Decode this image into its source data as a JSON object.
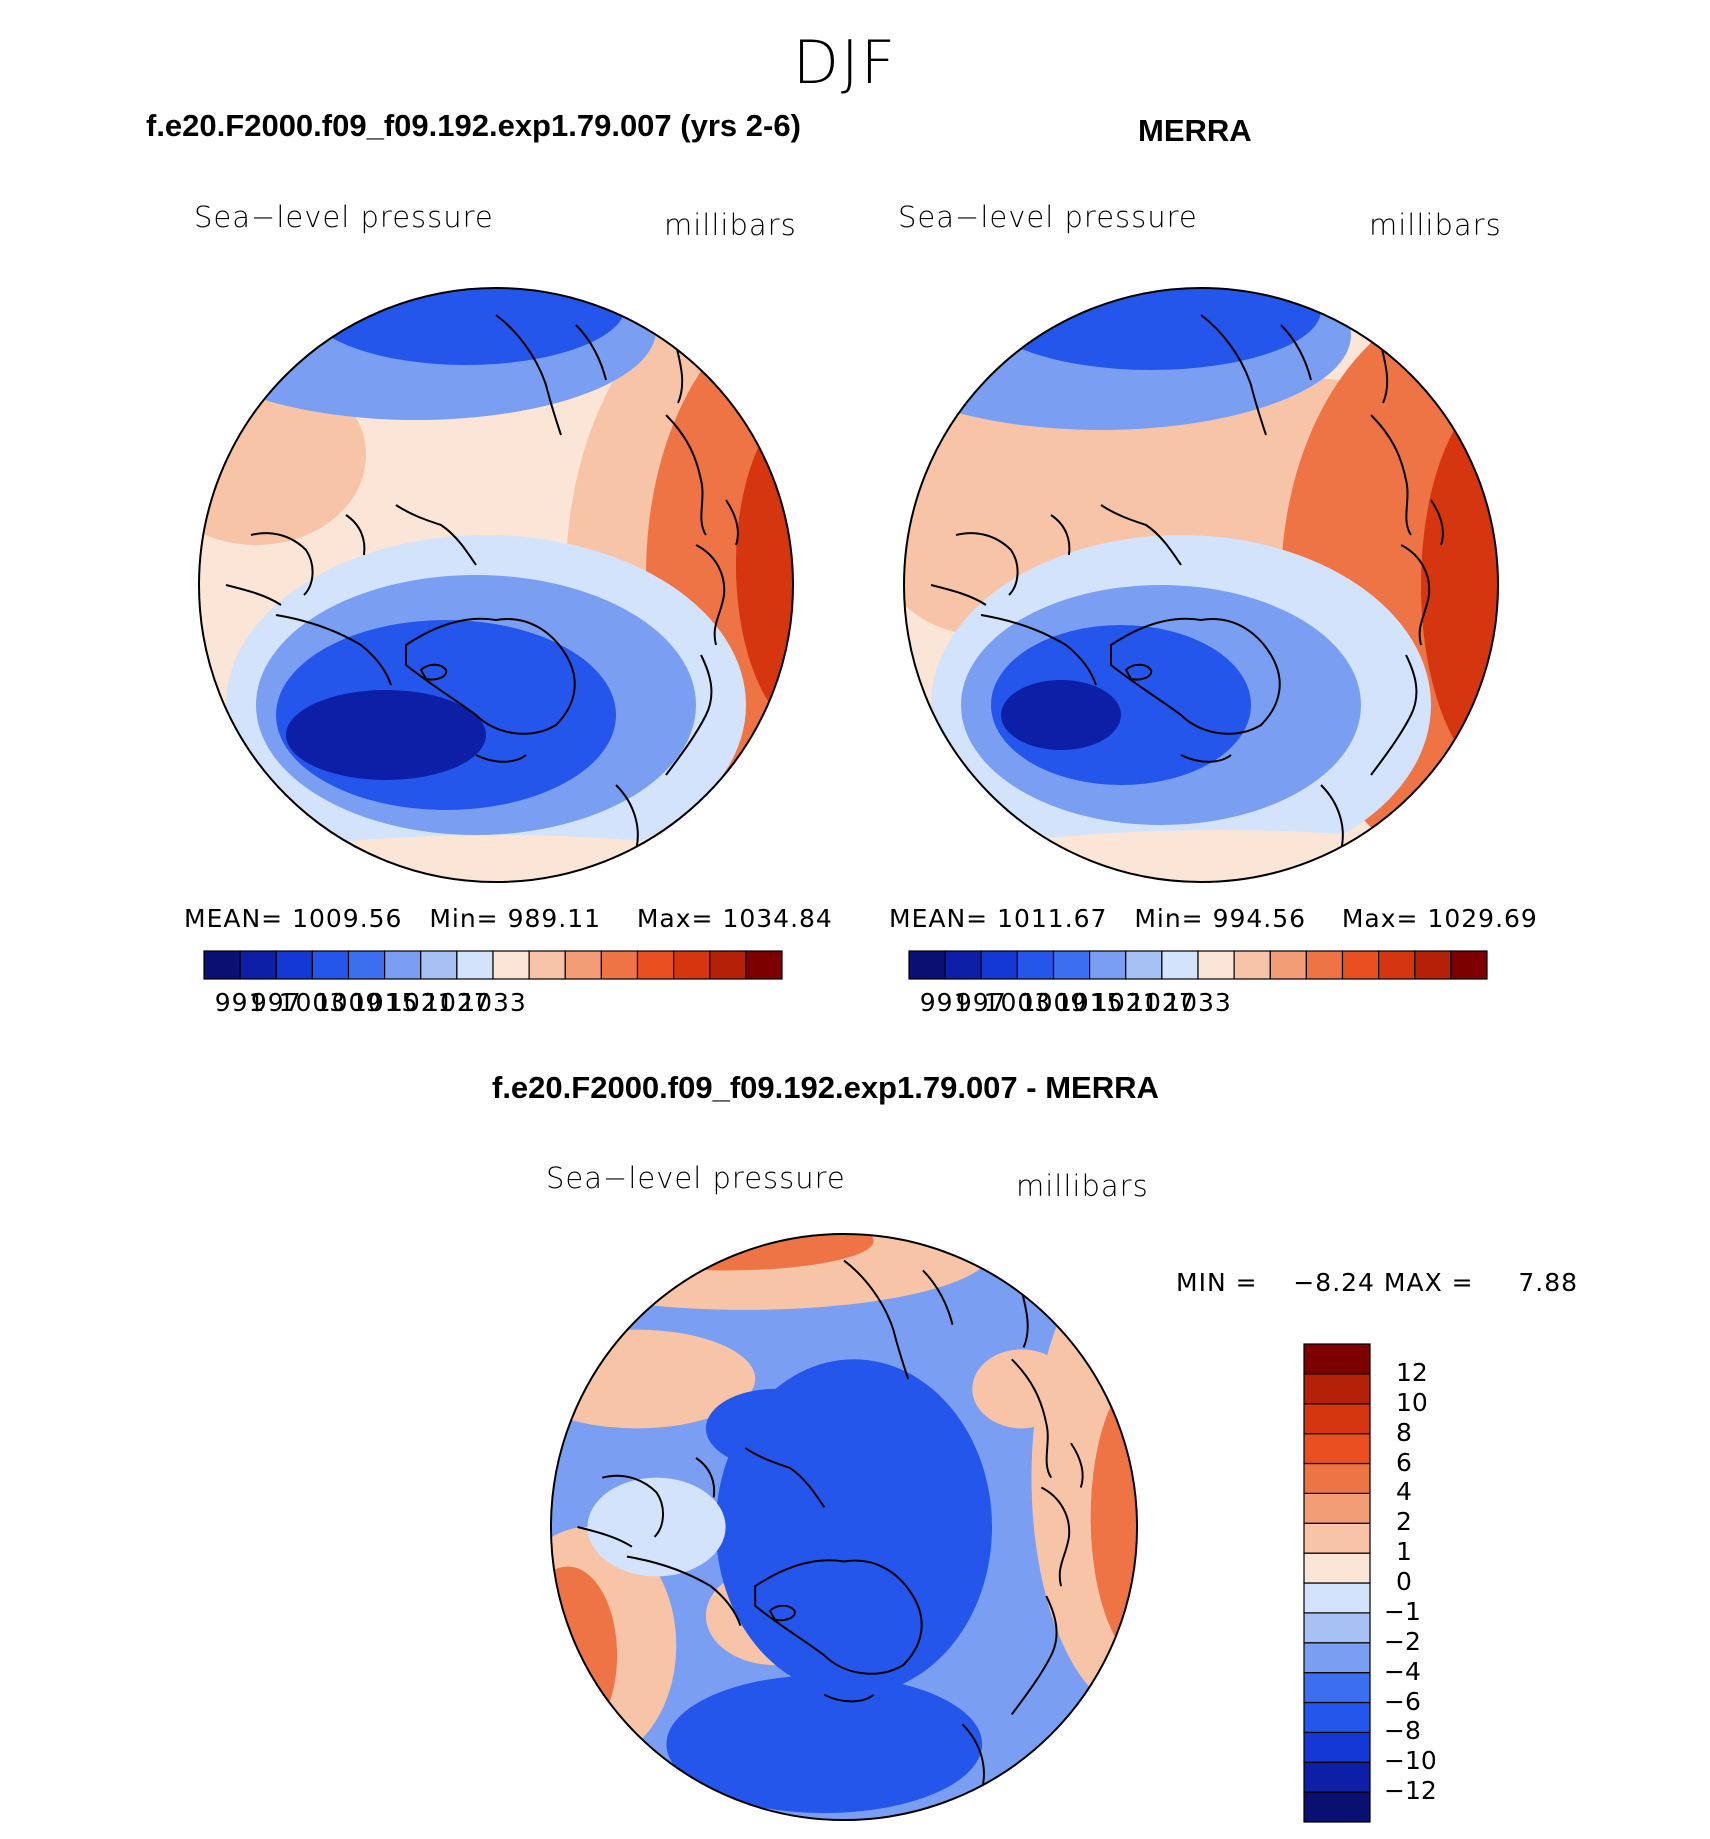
{
  "title": "DJF",
  "panels": [
    {
      "title": "f.e20.F2000.f09_f09.192.exp1.79.007 (yrs 2-6)",
      "variable_label": "Sea−level pressure",
      "units_label": "millibars",
      "stats": {
        "mean_label": "MEAN=",
        "mean": "1009.56",
        "min_label": "Min=",
        "min": "989.11",
        "max_label": "Max=",
        "max": "1034.84"
      }
    },
    {
      "title": "MERRA",
      "variable_label": "Sea−level pressure",
      "units_label": "millibars",
      "stats": {
        "mean_label": "MEAN=",
        "mean": "1011.67",
        "min_label": "Min=",
        "min": "994.56",
        "max_label": "Max=",
        "max": "1029.69"
      }
    },
    {
      "title": "f.e20.F2000.f09_f09.192.exp1.79.007 - MERRA",
      "variable_label": "Sea−level pressure",
      "units_label": "millibars",
      "stats_text": {
        "min_label": "MIN =",
        "min": "−8.24",
        "max_label": "MAX =",
        "max": "7.88"
      }
    }
  ],
  "slp_colorbar": {
    "colors": [
      "#0a0f72",
      "#0c1fa6",
      "#1438d6",
      "#2456ec",
      "#3b6ff0",
      "#7a9ff2",
      "#a7c1f5",
      "#d3e3fb",
      "#fbe5d6",
      "#f7c4a8",
      "#f39d77",
      "#ee7345",
      "#e94f20",
      "#d6360f",
      "#b52008",
      "#7c0000"
    ],
    "tick_labels": [
      "991",
      "997",
      "1003",
      "1009",
      "1015",
      "1021",
      "1027",
      "1033"
    ]
  },
  "diff_colorbar": {
    "colors": [
      "#0a0f72",
      "#0c1fa6",
      "#1438d6",
      "#2456ec",
      "#3b6ff0",
      "#7a9ff2",
      "#a7c1f5",
      "#d3e3fb",
      "#fbe5d6",
      "#f7c4a8",
      "#f39d77",
      "#ee7345",
      "#e94f20",
      "#d6360f",
      "#b52008",
      "#7c0000"
    ],
    "tick_labels": [
      "−12",
      "−10",
      "−8",
      "−6",
      "−4",
      "−2",
      "−1",
      "0",
      "1",
      "2",
      "4",
      "6",
      "8",
      "10",
      "12"
    ]
  },
  "map_colors": {
    "deep_blue": "#0c1fa6",
    "blue": "#2456ec",
    "mid_blue": "#7a9ff2",
    "light_blue": "#d3e3fb",
    "pale": "#fbe5d6",
    "light_red": "#f7c4a8",
    "red": "#ee7345",
    "dark_red": "#d6360f"
  }
}
